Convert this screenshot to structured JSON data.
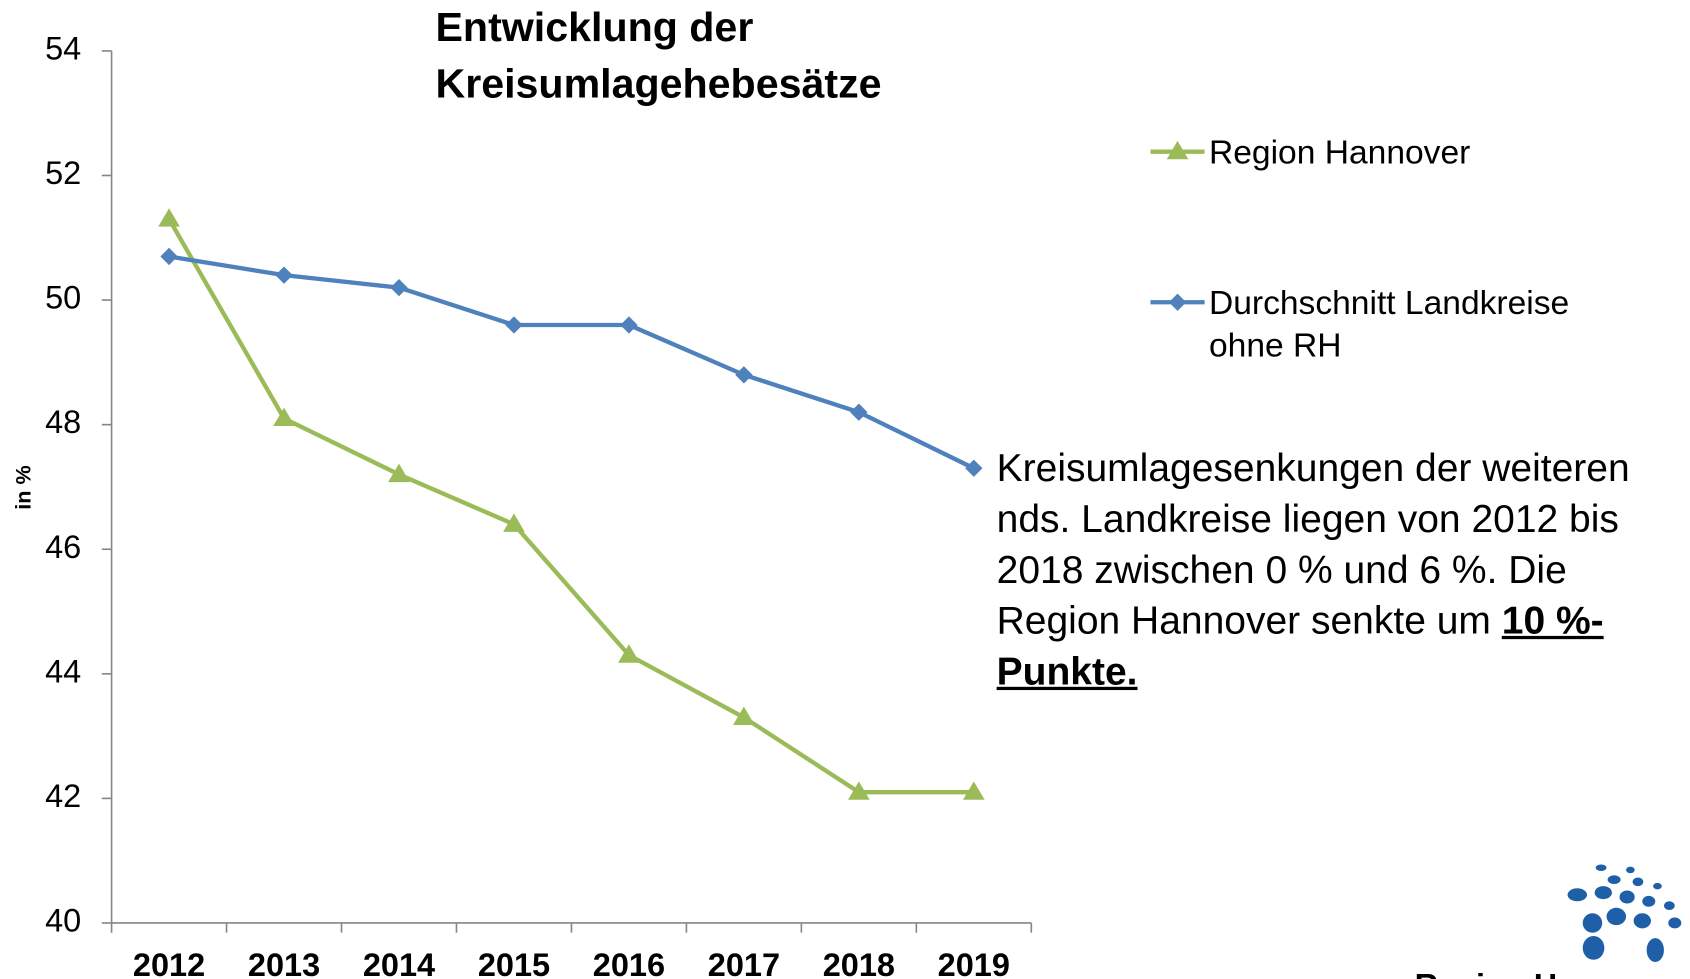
{
  "chart_data": {
    "type": "line",
    "title": [
      "Entwicklung der",
      "Kreisumlagehebesätze"
    ],
    "y_label": "in %",
    "categories": [
      "2012",
      "2013",
      "2014",
      "2015",
      "2016",
      "2017",
      "2018",
      "2019"
    ],
    "series": [
      {
        "name": "Region Hannover",
        "color": "#9bbb59",
        "marker": "triangle",
        "values": [
          51.3,
          48.1,
          47.2,
          46.4,
          44.3,
          43.3,
          42.1,
          42.1
        ]
      },
      {
        "name": "Durchschnitt Landkreise ohne RH",
        "color": "#4f81bd",
        "marker": "diamond",
        "values": [
          50.7,
          50.4,
          50.2,
          49.6,
          49.6,
          48.8,
          48.2,
          47.3
        ]
      }
    ],
    "ylim": [
      40,
      54
    ],
    "yticks": [
      40,
      42,
      44,
      46,
      48,
      50,
      52,
      54
    ],
    "annotation": {
      "text": "Kreisumlagesenkungen der weiteren nds. Landkreise liegen von 2012 bis 2018 zwischen 0 % und 6 %. Die Region Hannover senkte um",
      "emphasis": "10 %-Punkte."
    },
    "logo": "Region Hannover"
  }
}
